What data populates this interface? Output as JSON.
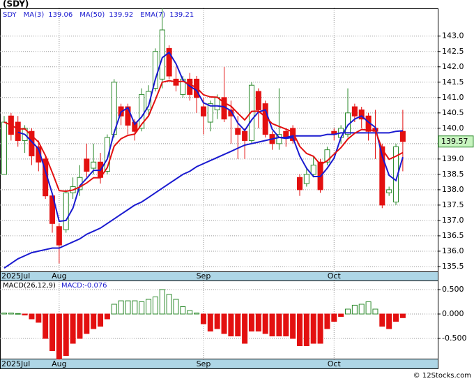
{
  "chart_data": [
    {
      "type": "candlestick",
      "title": "(SDY)",
      "legend_label": "SDY",
      "categories": [
        "2025Jul",
        null,
        null,
        null,
        null,
        null,
        null,
        null,
        "Aug",
        null,
        null,
        null,
        null,
        null,
        null,
        null,
        null,
        null,
        null,
        null,
        null,
        null,
        null,
        null,
        null,
        null,
        null,
        null,
        null,
        "Sep",
        null,
        null,
        null,
        null,
        null,
        null,
        null,
        null,
        null,
        null,
        null,
        null,
        null,
        null,
        null,
        null,
        null,
        null,
        "Oct",
        null,
        null,
        null,
        null,
        null,
        null,
        null,
        null,
        null,
        null
      ],
      "open": [
        138.5,
        140.4,
        140.2,
        139.6,
        139.9,
        139.4,
        139.0,
        137.8,
        136.8,
        136.7,
        137.9,
        138.0,
        139.0,
        138.7,
        138.9,
        138.6,
        139.8,
        140.7,
        140.7,
        140.2,
        140.0,
        140.6,
        141.3,
        141.6,
        142.6,
        141.6,
        141.1,
        141.6,
        141.6,
        140.7,
        140.2,
        140.6,
        141.0,
        140.6,
        140.0,
        139.9,
        139.6,
        141.2,
        140.8,
        139.8,
        139.5,
        139.9,
        140.0,
        138.4,
        138.2,
        138.5,
        138.9,
        138.9,
        139.9,
        139.7,
        139.8,
        140.7,
        140.6,
        140.4,
        140.0,
        139.4,
        137.9,
        137.6,
        139.9
      ],
      "high": [
        140.4,
        140.5,
        140.4,
        140.1,
        140.0,
        139.6,
        139.1,
        137.9,
        136.9,
        138.0,
        138.4,
        138.8,
        139.5,
        139.5,
        139.2,
        139.8,
        141.6,
        140.8,
        140.8,
        140.3,
        141.3,
        141.4,
        142.6,
        143.9,
        142.7,
        142.0,
        141.7,
        141.8,
        141.7,
        141.0,
        140.9,
        141.1,
        142.0,
        140.9,
        140.4,
        140.0,
        141.5,
        141.3,
        140.9,
        139.9,
        141.3,
        140.0,
        140.1,
        138.5,
        138.7,
        139.1,
        139.0,
        139.4,
        140.0,
        140.1,
        141.3,
        140.8,
        140.7,
        140.5,
        140.6,
        139.5,
        138.1,
        139.5,
        140.6
      ],
      "low": [
        138.5,
        139.6,
        139.4,
        139.2,
        138.8,
        138.6,
        137.7,
        136.6,
        135.6,
        136.6,
        137.7,
        137.8,
        138.4,
        138.5,
        138.2,
        138.5,
        139.7,
        140.1,
        139.8,
        139.6,
        139.9,
        140.4,
        141.2,
        141.3,
        141.6,
        141.2,
        141.0,
        140.9,
        140.5,
        139.8,
        139.9,
        140.3,
        140.2,
        139.5,
        139.0,
        139.0,
        139.5,
        140.0,
        139.7,
        139.3,
        139.3,
        139.4,
        139.5,
        137.8,
        138.1,
        138.4,
        137.9,
        138.8,
        139.6,
        139.5,
        139.7,
        140.2,
        140.0,
        139.6,
        139.0,
        137.4,
        137.8,
        137.5,
        138.6
      ],
      "close": [
        140.2,
        139.8,
        139.6,
        140.0,
        139.1,
        138.9,
        137.8,
        136.9,
        136.2,
        137.9,
        138.1,
        138.4,
        138.6,
        138.9,
        138.4,
        139.7,
        141.5,
        140.4,
        140.1,
        139.9,
        141.1,
        141.2,
        142.5,
        143.2,
        141.7,
        141.4,
        141.6,
        141.1,
        141.0,
        140.4,
        140.8,
        141.0,
        140.3,
        140.4,
        139.8,
        139.6,
        141.4,
        140.6,
        139.8,
        139.5,
        139.8,
        139.7,
        139.6,
        138.0,
        138.5,
        138.8,
        138.0,
        139.3,
        139.8,
        140.0,
        140.5,
        140.4,
        140.3,
        139.9,
        139.9,
        137.5,
        138.0,
        139.4,
        139.57
      ],
      "series": [
        {
          "name": "MA(3)",
          "color": "#1a1ad0",
          "values": [
            null,
            null,
            139.87,
            139.8,
            139.57,
            139.33,
            138.6,
            137.87,
            136.97,
            137.0,
            137.4,
            138.13,
            138.37,
            138.63,
            138.63,
            139.0,
            139.87,
            140.53,
            140.67,
            140.13,
            140.37,
            140.73,
            141.6,
            142.3,
            142.47,
            142.1,
            141.57,
            141.37,
            141.23,
            140.83,
            140.73,
            140.73,
            140.7,
            140.57,
            140.17,
            139.93,
            140.27,
            140.53,
            140.6,
            139.97,
            139.7,
            139.67,
            139.7,
            139.1,
            138.7,
            138.43,
            138.43,
            138.7,
            139.03,
            139.7,
            140.1,
            140.3,
            140.4,
            140.2,
            140.03,
            139.1,
            138.47,
            138.3,
            139.06
          ]
        },
        {
          "name": "MA(50)",
          "color": "#1a1ad0",
          "values": [
            135.45,
            135.6,
            135.75,
            135.85,
            135.95,
            136.0,
            136.05,
            136.1,
            136.1,
            136.2,
            136.3,
            136.4,
            136.55,
            136.65,
            136.75,
            136.9,
            137.05,
            137.2,
            137.35,
            137.5,
            137.6,
            137.75,
            137.9,
            138.05,
            138.2,
            138.35,
            138.5,
            138.6,
            138.75,
            138.85,
            138.95,
            139.05,
            139.15,
            139.25,
            139.35,
            139.45,
            139.5,
            139.55,
            139.6,
            139.65,
            139.7,
            139.7,
            139.75,
            139.75,
            139.75,
            139.75,
            139.75,
            139.8,
            139.8,
            139.85,
            139.85,
            139.85,
            139.85,
            139.85,
            139.85,
            139.85,
            139.85,
            139.9,
            139.92
          ]
        },
        {
          "name": "EMA(7)",
          "color": "#e31010",
          "values": [
            140.2,
            140.1,
            139.98,
            139.98,
            139.76,
            139.55,
            139.11,
            138.56,
            137.97,
            137.95,
            137.99,
            138.09,
            138.22,
            138.39,
            138.39,
            138.72,
            139.42,
            139.66,
            139.77,
            139.81,
            140.13,
            140.4,
            140.93,
            141.5,
            141.55,
            141.51,
            141.53,
            141.43,
            141.32,
            141.09,
            141.02,
            141.01,
            140.83,
            140.72,
            140.49,
            140.27,
            140.55,
            140.56,
            140.37,
            140.15,
            140.06,
            139.97,
            139.88,
            139.41,
            139.18,
            139.09,
            138.82,
            138.94,
            139.16,
            139.37,
            139.65,
            139.84,
            139.96,
            139.94,
            139.93,
            139.32,
            138.99,
            139.09,
            139.21
          ]
        }
      ],
      "last_price": 139.57,
      "ylim": [
        135.34,
        143.88
      ],
      "yticks": [
        135.5,
        {
          "value": 136,
          "label": "136.0"
        },
        136.5,
        {
          "value": 137,
          "label": "137.0"
        },
        137.5,
        {
          "value": 138,
          "label": "138.0"
        },
        138.5,
        {
          "value": 139,
          "label": "139.0"
        },
        139.5,
        {
          "value": 140,
          "label": "140.0"
        },
        140.5,
        {
          "value": 141,
          "label": "141.0"
        },
        141.5,
        {
          "value": 142,
          "label": "142.0"
        },
        142.5,
        {
          "value": 143,
          "label": "143.0"
        }
      ],
      "up_color": "#2e8b2e",
      "down_color": "#e31010",
      "grid": true
    },
    {
      "type": "bar",
      "title": "MACD(26,12,9)",
      "subtitle": "MACD:-0.076",
      "values": [
        0.02,
        0.02,
        0.01,
        -0.02,
        -0.1,
        -0.17,
        -0.5,
        -0.75,
        -0.92,
        -0.85,
        -0.6,
        -0.5,
        -0.4,
        -0.3,
        -0.25,
        -0.1,
        0.2,
        0.27,
        0.27,
        0.27,
        0.25,
        0.3,
        0.35,
        0.5,
        0.4,
        0.3,
        0.15,
        0.07,
        0.02,
        -0.2,
        -0.35,
        -0.3,
        -0.4,
        -0.45,
        -0.45,
        -0.6,
        -0.35,
        -0.35,
        -0.4,
        -0.45,
        -0.45,
        -0.45,
        -0.5,
        -0.65,
        -0.65,
        -0.6,
        -0.6,
        -0.3,
        -0.15,
        -0.05,
        0.1,
        0.18,
        0.2,
        0.25,
        0.1,
        -0.25,
        -0.3,
        -0.15,
        -0.076
      ],
      "ylim": [
        -0.914,
        0.671
      ],
      "yticks": [
        {
          "value": -0.5,
          "label": "-0.500"
        },
        {
          "value": 0,
          "label": "0.000"
        },
        {
          "value": 0.5,
          "label": "0.500"
        }
      ],
      "up_color": "#2e8b2e",
      "down_color": "#e31010",
      "grid": true
    }
  ],
  "footer": "© 12Stocks.com"
}
